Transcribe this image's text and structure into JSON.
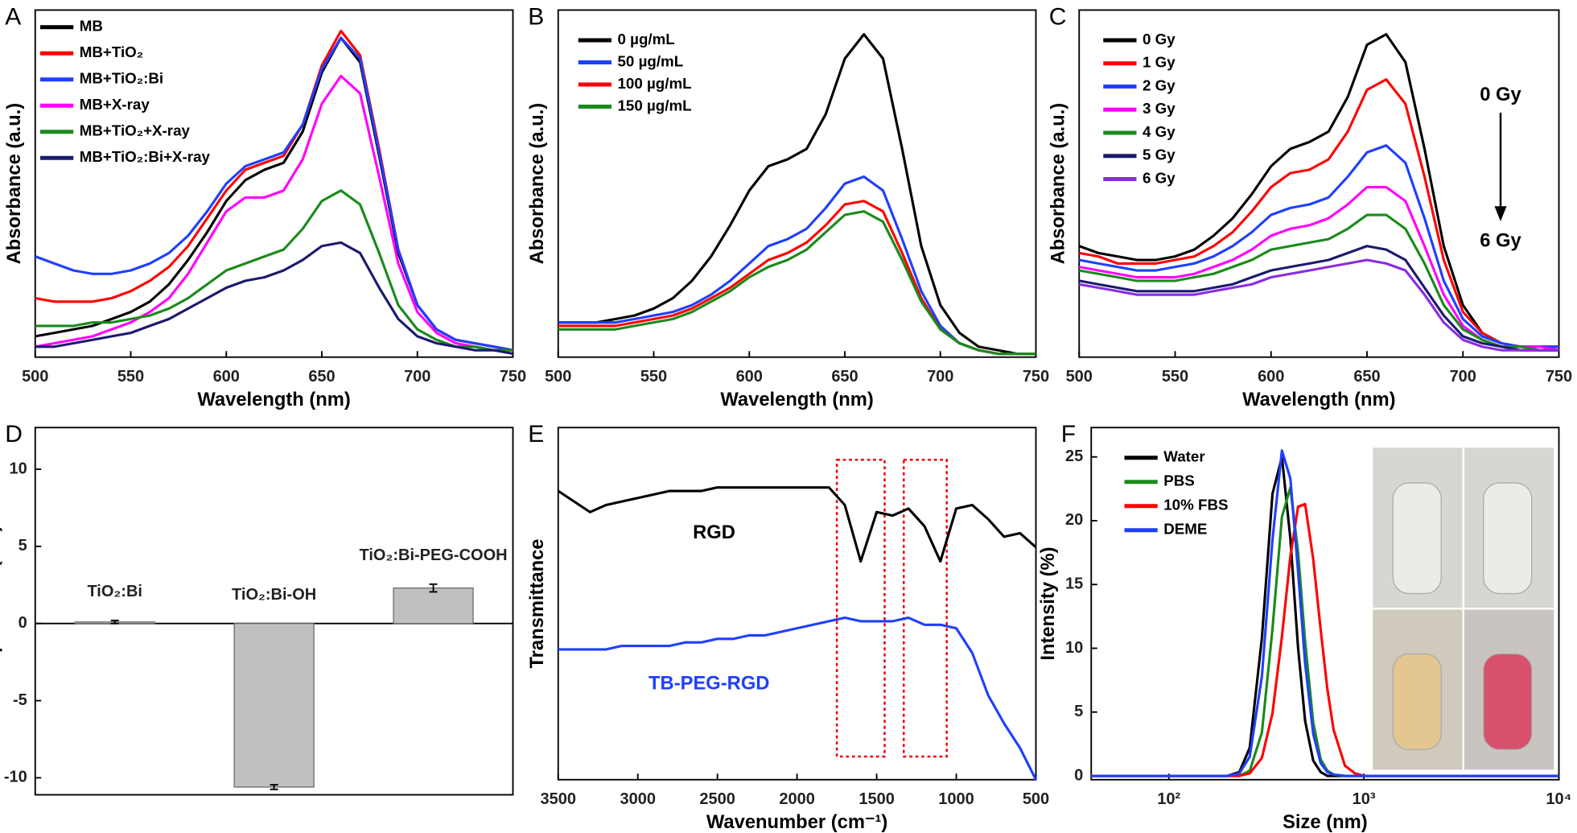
{
  "chart_data": [
    {
      "panel": "A",
      "type": "line",
      "xlabel": "Wavelength (nm)",
      "ylabel": "Absorbance (a.u.)",
      "x": [
        500,
        510,
        520,
        530,
        540,
        550,
        560,
        570,
        580,
        590,
        600,
        610,
        620,
        630,
        640,
        650,
        660,
        670,
        680,
        690,
        700,
        710,
        720,
        730,
        740,
        750
      ],
      "xlim": [
        500,
        750
      ],
      "xticks": [
        500,
        550,
        600,
        650,
        700,
        750
      ],
      "ylim": [
        0,
        1
      ],
      "legend": "upper left",
      "series": [
        {
          "name": "MB",
          "color": "#000000",
          "values": [
            0.06,
            0.07,
            0.08,
            0.09,
            0.11,
            0.13,
            0.16,
            0.21,
            0.28,
            0.36,
            0.45,
            0.51,
            0.54,
            0.56,
            0.65,
            0.82,
            0.92,
            0.85,
            0.58,
            0.3,
            0.15,
            0.08,
            0.05,
            0.04,
            0.03,
            0.02
          ]
        },
        {
          "name": "MB+TiO₂",
          "color": "#ff0000",
          "values": [
            0.17,
            0.16,
            0.16,
            0.16,
            0.17,
            0.19,
            0.22,
            0.26,
            0.32,
            0.4,
            0.48,
            0.54,
            0.56,
            0.58,
            0.67,
            0.84,
            0.94,
            0.87,
            0.6,
            0.31,
            0.15,
            0.08,
            0.05,
            0.04,
            0.03,
            0.02
          ]
        },
        {
          "name": "MB+TiO₂:Bi",
          "color": "#1f3fff",
          "values": [
            0.29,
            0.27,
            0.25,
            0.24,
            0.24,
            0.25,
            0.27,
            0.3,
            0.35,
            0.42,
            0.5,
            0.55,
            0.57,
            0.59,
            0.67,
            0.83,
            0.92,
            0.86,
            0.59,
            0.31,
            0.15,
            0.08,
            0.05,
            0.04,
            0.03,
            0.02
          ]
        },
        {
          "name": "MB+X-ray",
          "color": "#ff00ff",
          "values": [
            0.03,
            0.04,
            0.05,
            0.06,
            0.08,
            0.1,
            0.13,
            0.17,
            0.24,
            0.33,
            0.42,
            0.46,
            0.46,
            0.48,
            0.57,
            0.73,
            0.81,
            0.76,
            0.52,
            0.27,
            0.13,
            0.07,
            0.04,
            0.03,
            0.02,
            0.02
          ]
        },
        {
          "name": "MB+TiO₂+X-ray",
          "color": "#1a8a1a",
          "values": [
            0.09,
            0.09,
            0.09,
            0.1,
            0.1,
            0.11,
            0.12,
            0.14,
            0.17,
            0.21,
            0.25,
            0.27,
            0.29,
            0.31,
            0.37,
            0.45,
            0.48,
            0.44,
            0.3,
            0.15,
            0.08,
            0.05,
            0.03,
            0.03,
            0.02,
            0.02
          ]
        },
        {
          "name": "MB+TiO₂:Bi+X-ray",
          "color": "#1a1a6e",
          "values": [
            0.03,
            0.03,
            0.04,
            0.05,
            0.06,
            0.07,
            0.09,
            0.11,
            0.14,
            0.17,
            0.2,
            0.22,
            0.23,
            0.25,
            0.28,
            0.32,
            0.33,
            0.3,
            0.2,
            0.11,
            0.06,
            0.04,
            0.03,
            0.02,
            0.02,
            0.01
          ]
        }
      ]
    },
    {
      "panel": "B",
      "type": "line",
      "xlabel": "Wavelength (nm)",
      "ylabel": "Absorbance (a.u.)",
      "x": [
        500,
        510,
        520,
        530,
        540,
        550,
        560,
        570,
        580,
        590,
        600,
        610,
        620,
        630,
        640,
        650,
        660,
        670,
        680,
        690,
        700,
        710,
        720,
        730,
        740,
        750
      ],
      "xlim": [
        500,
        750
      ],
      "xticks": [
        500,
        550,
        600,
        650,
        700,
        750
      ],
      "ylim": [
        0,
        1
      ],
      "legend": "upper left",
      "series": [
        {
          "name": "0 µg/mL",
          "color": "#000000",
          "values": [
            0.1,
            0.1,
            0.1,
            0.11,
            0.12,
            0.14,
            0.17,
            0.22,
            0.29,
            0.38,
            0.48,
            0.55,
            0.57,
            0.6,
            0.7,
            0.86,
            0.93,
            0.86,
            0.6,
            0.32,
            0.15,
            0.07,
            0.03,
            0.02,
            0.01,
            0.01
          ]
        },
        {
          "name": "50 µg/mL",
          "color": "#1f3fff",
          "values": [
            0.1,
            0.1,
            0.1,
            0.1,
            0.11,
            0.12,
            0.13,
            0.15,
            0.18,
            0.22,
            0.27,
            0.32,
            0.34,
            0.37,
            0.43,
            0.5,
            0.52,
            0.48,
            0.34,
            0.19,
            0.09,
            0.04,
            0.02,
            0.01,
            0.01,
            0.01
          ]
        },
        {
          "name": "100 µg/mL",
          "color": "#ff0000",
          "values": [
            0.09,
            0.09,
            0.09,
            0.09,
            0.1,
            0.11,
            0.12,
            0.14,
            0.17,
            0.2,
            0.24,
            0.28,
            0.3,
            0.33,
            0.38,
            0.44,
            0.45,
            0.42,
            0.3,
            0.17,
            0.08,
            0.04,
            0.02,
            0.01,
            0.01,
            0.01
          ]
        },
        {
          "name": "150 µg/mL",
          "color": "#1a8a1a",
          "values": [
            0.08,
            0.08,
            0.08,
            0.08,
            0.09,
            0.1,
            0.11,
            0.13,
            0.16,
            0.19,
            0.23,
            0.26,
            0.28,
            0.31,
            0.36,
            0.41,
            0.42,
            0.39,
            0.28,
            0.16,
            0.08,
            0.04,
            0.02,
            0.01,
            0.01,
            0.01
          ]
        }
      ]
    },
    {
      "panel": "C",
      "type": "line",
      "xlabel": "Wavelength (nm)",
      "ylabel": "Absorbance (a.u.)",
      "x": [
        500,
        510,
        520,
        530,
        540,
        550,
        560,
        570,
        580,
        590,
        600,
        610,
        620,
        630,
        640,
        650,
        660,
        670,
        680,
        690,
        700,
        710,
        720,
        730,
        740,
        750
      ],
      "xlim": [
        500,
        750
      ],
      "xticks": [
        500,
        550,
        600,
        650,
        700,
        750
      ],
      "ylim": [
        0,
        1
      ],
      "legend": "upper left",
      "annotations": [
        {
          "text": "0 Gy",
          "color": "#000000"
        },
        {
          "text": "6 Gy",
          "color": "#000000"
        }
      ],
      "series": [
        {
          "name": "0 Gy",
          "color": "#000000",
          "values": [
            0.32,
            0.3,
            0.29,
            0.28,
            0.28,
            0.29,
            0.31,
            0.35,
            0.4,
            0.47,
            0.55,
            0.6,
            0.62,
            0.65,
            0.75,
            0.9,
            0.93,
            0.85,
            0.6,
            0.32,
            0.15,
            0.07,
            0.04,
            0.03,
            0.03,
            0.03
          ]
        },
        {
          "name": "1 Gy",
          "color": "#ff0000",
          "values": [
            0.3,
            0.29,
            0.27,
            0.27,
            0.27,
            0.28,
            0.29,
            0.32,
            0.36,
            0.42,
            0.49,
            0.53,
            0.54,
            0.57,
            0.65,
            0.77,
            0.8,
            0.73,
            0.52,
            0.28,
            0.13,
            0.07,
            0.04,
            0.03,
            0.03,
            0.03
          ]
        },
        {
          "name": "2 Gy",
          "color": "#1f3fff",
          "values": [
            0.28,
            0.27,
            0.26,
            0.25,
            0.25,
            0.26,
            0.27,
            0.29,
            0.32,
            0.36,
            0.41,
            0.43,
            0.44,
            0.46,
            0.52,
            0.59,
            0.61,
            0.56,
            0.4,
            0.22,
            0.11,
            0.06,
            0.04,
            0.03,
            0.03,
            0.03
          ]
        },
        {
          "name": "3 Gy",
          "color": "#ff00ff",
          "values": [
            0.26,
            0.25,
            0.24,
            0.23,
            0.23,
            0.23,
            0.24,
            0.26,
            0.28,
            0.31,
            0.35,
            0.37,
            0.38,
            0.4,
            0.44,
            0.49,
            0.49,
            0.45,
            0.32,
            0.18,
            0.09,
            0.05,
            0.03,
            0.03,
            0.03,
            0.02
          ]
        },
        {
          "name": "4 Gy",
          "color": "#1a8a1a",
          "values": [
            0.25,
            0.24,
            0.23,
            0.22,
            0.22,
            0.22,
            0.23,
            0.24,
            0.26,
            0.28,
            0.31,
            0.32,
            0.33,
            0.34,
            0.37,
            0.41,
            0.41,
            0.37,
            0.27,
            0.15,
            0.08,
            0.05,
            0.03,
            0.03,
            0.02,
            0.02
          ]
        },
        {
          "name": "5 Gy",
          "color": "#1a1a6e",
          "values": [
            0.22,
            0.21,
            0.2,
            0.19,
            0.19,
            0.19,
            0.19,
            0.2,
            0.21,
            0.23,
            0.25,
            0.26,
            0.27,
            0.28,
            0.3,
            0.32,
            0.31,
            0.28,
            0.2,
            0.12,
            0.06,
            0.04,
            0.03,
            0.02,
            0.02,
            0.02
          ]
        },
        {
          "name": "6 Gy",
          "color": "#8a2be2",
          "values": [
            0.21,
            0.2,
            0.19,
            0.18,
            0.18,
            0.18,
            0.18,
            0.19,
            0.2,
            0.21,
            0.23,
            0.24,
            0.25,
            0.26,
            0.27,
            0.28,
            0.27,
            0.25,
            0.18,
            0.1,
            0.05,
            0.03,
            0.02,
            0.02,
            0.02,
            0.02
          ]
        }
      ]
    },
    {
      "panel": "D",
      "type": "bar",
      "ylabel": "Zeta potential (mV)",
      "categories": [
        "TiO₂:Bi",
        "TiO₂:Bi-OH",
        "TiO₂:Bi-PEG-COOH"
      ],
      "values": [
        0.1,
        -10.6,
        2.3
      ],
      "errors": [
        0.1,
        0.15,
        0.25
      ],
      "color": "#c0c0c0",
      "ylim": [
        -11.1,
        12.7
      ],
      "yticks": [
        -10,
        -5,
        0,
        5,
        10
      ]
    },
    {
      "panel": "E",
      "type": "line",
      "xlabel": "Wavenumber (cm⁻¹)",
      "ylabel": "Transmittance",
      "x": [
        3500,
        3400,
        3300,
        3200,
        3100,
        3000,
        2900,
        2800,
        2700,
        2600,
        2500,
        2400,
        2300,
        2200,
        2100,
        2000,
        1900,
        1800,
        1700,
        1600,
        1500,
        1400,
        1300,
        1200,
        1100,
        1000,
        900,
        800,
        700,
        600,
        500
      ],
      "xlim": [
        3500,
        500
      ],
      "xticks": [
        3500,
        3000,
        2500,
        2000,
        1500,
        1000,
        500
      ],
      "ylim": [
        0,
        1
      ],
      "highlight_ranges": [
        [
          1750,
          1450
        ],
        [
          1330,
          1060
        ]
      ],
      "series": [
        {
          "name": "RGD",
          "color": "#000000",
          "values": [
            0.82,
            0.79,
            0.76,
            0.78,
            0.79,
            0.8,
            0.81,
            0.82,
            0.82,
            0.82,
            0.83,
            0.83,
            0.83,
            0.83,
            0.83,
            0.83,
            0.83,
            0.83,
            0.78,
            0.62,
            0.76,
            0.75,
            0.77,
            0.72,
            0.62,
            0.77,
            0.78,
            0.74,
            0.69,
            0.7,
            0.66
          ]
        },
        {
          "name": "TB-PEG-RGD",
          "color": "#1f3fff",
          "values": [
            0.37,
            0.37,
            0.37,
            0.37,
            0.38,
            0.38,
            0.38,
            0.38,
            0.39,
            0.39,
            0.4,
            0.4,
            0.41,
            0.41,
            0.42,
            0.43,
            0.44,
            0.45,
            0.46,
            0.45,
            0.45,
            0.45,
            0.46,
            0.44,
            0.44,
            0.43,
            0.36,
            0.24,
            0.16,
            0.09,
            0.0
          ]
        }
      ]
    },
    {
      "panel": "F",
      "type": "line",
      "xlabel": "Size (nm)",
      "ylabel": "Intensity (%)",
      "xlog": true,
      "x": [
        40,
        150,
        200,
        230,
        260,
        300,
        340,
        380,
        420,
        460,
        500,
        550,
        600,
        650,
        700,
        800,
        900,
        1000,
        2000,
        10000
      ],
      "xlim": [
        40,
        10000
      ],
      "xticks": [
        {
          "value": 100,
          "label": "10²"
        },
        {
          "value": 1000,
          "label": "10³"
        },
        {
          "value": 10000,
          "label": "10⁴"
        }
      ],
      "ylim": [
        -0.3,
        27.3
      ],
      "yticks": [
        0,
        5,
        10,
        15,
        20,
        25
      ],
      "legend": "upper left",
      "series": [
        {
          "name": "Water",
          "color": "#000000",
          "values": [
            0,
            0,
            0,
            0.3,
            2.2,
            10.8,
            22.1,
            25.0,
            18.6,
            10.0,
            4.3,
            1.2,
            0.3,
            0,
            0,
            0,
            0,
            0,
            0,
            0
          ]
        },
        {
          "name": "PBS",
          "color": "#1a8a1a",
          "values": [
            0,
            0,
            0,
            0,
            0.4,
            3.4,
            11.5,
            20.3,
            22.6,
            17.5,
            10.5,
            4.2,
            1.3,
            0.4,
            0.1,
            0,
            0,
            0,
            0,
            0
          ]
        },
        {
          "name": "10% FBS",
          "color": "#ff0000",
          "values": [
            0,
            0,
            0,
            0,
            0.2,
            1.4,
            4.9,
            10.9,
            17.2,
            21.1,
            21.3,
            17.0,
            11.5,
            6.8,
            3.6,
            0.8,
            0.2,
            0,
            0,
            0
          ]
        },
        {
          "name": "DEME",
          "color": "#1f3fff",
          "values": [
            0,
            0,
            0,
            0.2,
            1.5,
            7.8,
            18.5,
            25.5,
            23.3,
            16.0,
            8.8,
            3.3,
            1.0,
            0.3,
            0.1,
            0,
            0,
            0,
            0,
            0
          ]
        }
      ]
    }
  ]
}
